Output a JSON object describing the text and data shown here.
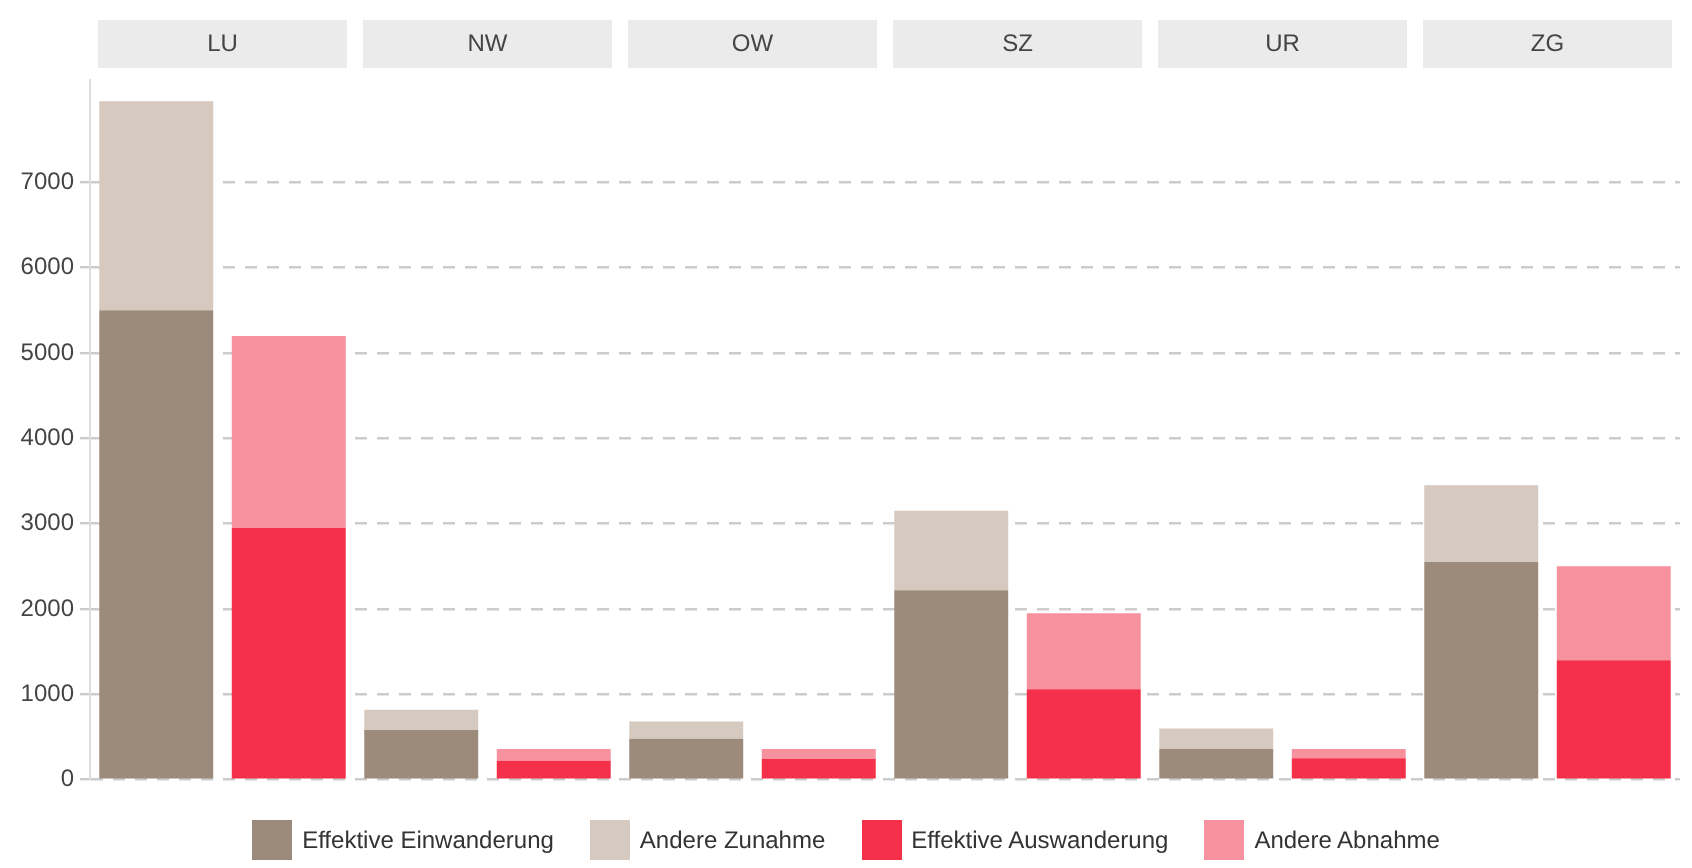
{
  "chart_data": {
    "type": "bar",
    "categories": [
      null,
      null,
      null,
      null,
      null,
      null,
      null,
      null,
      null,
      null,
      null,
      null
    ],
    "stacked": true,
    "ylim": [
      0,
      8200
    ],
    "yticks": [
      0,
      1000,
      2000,
      3000,
      4000,
      5000,
      6000,
      7000
    ],
    "grid": "y",
    "legend": "bottom",
    "tick_labels": "y",
    "annotations": [
      "LU",
      "NW",
      "OW",
      "SZ",
      "UR",
      "ZG"
    ],
    "series": [
      {
        "name": "Effektive Einwanderung",
        "color": "#9c8b7a",
        "values": [
          5500,
          null,
          580,
          null,
          480,
          null,
          2220,
          null,
          360,
          null,
          2550,
          null
        ]
      },
      {
        "name": "Andere Zunahme",
        "color": "#d6c9bf",
        "values": [
          2450,
          null,
          240,
          null,
          200,
          null,
          930,
          null,
          240,
          null,
          900,
          null
        ]
      },
      {
        "name": "Effektive Auswanderung",
        "color": "#f5304b",
        "values": [
          null,
          2950,
          null,
          220,
          null,
          240,
          null,
          1060,
          null,
          250,
          null,
          1400
        ]
      },
      {
        "name": "Andere Abnahme",
        "color": "#f7919e",
        "values": [
          null,
          2250,
          null,
          140,
          null,
          120,
          null,
          890,
          null,
          110,
          null,
          1100
        ]
      }
    ]
  }
}
